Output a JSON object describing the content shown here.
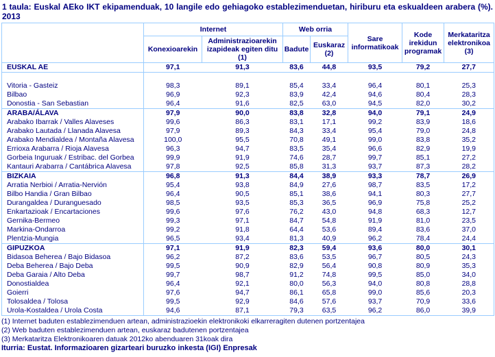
{
  "title": "1 taula: Euskal AEko IKT ekipamenduak, 10 langile edo gehiagoko establezimenduetan, hiriburu eta eskualdeen arabera (%). 2013",
  "colors": {
    "text_navy": "#000080",
    "border_light_blue": "#99CCFF",
    "background": "#FFFFFF"
  },
  "table": {
    "header": {
      "corner": "",
      "group_internet": "Internet",
      "group_web": "Web orria",
      "col_konexio": "Konexioarekin",
      "col_admin": "Administrazioarekin izapideak egiten ditu (1)",
      "col_badute": "Badute",
      "col_euskaraz": "Euskaraz (2)",
      "col_sare": "Sare informatikoak",
      "col_kode": "Kode irekidun programak",
      "col_merkataritza": "Merkataritza elektronikoa (3)"
    },
    "rows": [
      {
        "label": "EUSKAL AE",
        "type": "total",
        "values": [
          "97,1",
          "91,3",
          "83,6",
          "44,8",
          "93,5",
          "79,2",
          "27,7"
        ]
      },
      {
        "label": "",
        "type": "blank",
        "values": []
      },
      {
        "label": "Vitoria - Gasteiz",
        "type": "city",
        "values": [
          "98,3",
          "89,1",
          "85,4",
          "33,4",
          "96,4",
          "80,1",
          "25,3"
        ]
      },
      {
        "label": "Bilbao",
        "type": "city",
        "values": [
          "96,9",
          "92,3",
          "83,9",
          "42,4",
          "94,6",
          "80,4",
          "28,3"
        ]
      },
      {
        "label": "Donostia - San Sebastian",
        "type": "city",
        "values": [
          "96,4",
          "91,6",
          "82,5",
          "63,0",
          "94,5",
          "82,0",
          "30,2"
        ]
      },
      {
        "label": "ARABA/ÁLAVA",
        "type": "section",
        "values": [
          "97,9",
          "90,0",
          "83,8",
          "32,8",
          "94,0",
          "79,1",
          "24,9"
        ]
      },
      {
        "label": "Arabako Ibarrak / Valles Alaveses",
        "type": "sub",
        "values": [
          "99,6",
          "86,3",
          "83,1",
          "17,1",
          "99,2",
          "83,9",
          "18,6"
        ]
      },
      {
        "label": "Arabako Lautada / Llanada Alavesa",
        "type": "sub",
        "values": [
          "97,9",
          "89,3",
          "84,3",
          "33,4",
          "95,4",
          "79,0",
          "24,8"
        ]
      },
      {
        "label": "Arabako Mendialdea / Montaña Alavesa",
        "type": "sub",
        "values": [
          "100,0",
          "95,5",
          "70,8",
          "49,1",
          "99,0",
          "83,8",
          "35,2"
        ]
      },
      {
        "label": "Errioxa Arabarra / Rioja Alavesa",
        "type": "sub",
        "values": [
          "96,3",
          "94,7",
          "83,5",
          "35,4",
          "96,6",
          "82,9",
          "19,9"
        ]
      },
      {
        "label": "Gorbeia Inguruak / Estribac. del Gorbea",
        "type": "sub",
        "values": [
          "99,9",
          "91,9",
          "74,6",
          "28,7",
          "99,7",
          "85,1",
          "27,2"
        ]
      },
      {
        "label": "Kantauri Arabarra / Cantábrica Alavesa",
        "type": "sub",
        "values": [
          "97,8",
          "92,5",
          "85,8",
          "31,3",
          "93,7",
          "87,3",
          "28,2"
        ]
      },
      {
        "label": "BIZKAIA",
        "type": "section",
        "values": [
          "96,8",
          "91,3",
          "84,4",
          "38,9",
          "93,3",
          "78,7",
          "26,9"
        ]
      },
      {
        "label": "Arratia Nerbioi / Arratia-Nervión",
        "type": "sub",
        "values": [
          "95,4",
          "93,8",
          "84,9",
          "27,6",
          "98,7",
          "83,5",
          "17,2"
        ]
      },
      {
        "label": "Bilbo Handia / Gran Bilbao",
        "type": "sub",
        "values": [
          "96,4",
          "90,5",
          "85,1",
          "38,6",
          "94,1",
          "80,3",
          "27,7"
        ]
      },
      {
        "label": "Durangaldea / Duranguesado",
        "type": "sub",
        "values": [
          "98,5",
          "93,5",
          "85,3",
          "36,5",
          "96,9",
          "75,8",
          "25,2"
        ]
      },
      {
        "label": "Enkartazioak / Encartaciones",
        "type": "sub",
        "values": [
          "99,6",
          "97,6",
          "76,2",
          "43,0",
          "94,8",
          "68,3",
          "12,7"
        ]
      },
      {
        "label": "Gernika-Bermeo",
        "type": "sub",
        "values": [
          "99,3",
          "97,1",
          "84,7",
          "54,8",
          "91,9",
          "81,0",
          "23,5"
        ]
      },
      {
        "label": "Markina-Ondarroa",
        "type": "sub",
        "values": [
          "99,2",
          "91,8",
          "64,4",
          "53,6",
          "89,4",
          "83,6",
          "37,0"
        ]
      },
      {
        "label": "Plentzia-Mungia",
        "type": "sub",
        "values": [
          "96,5",
          "93,4",
          "81,3",
          "40,9",
          "96,2",
          "78,4",
          "24,4"
        ]
      },
      {
        "label": "GIPUZKOA",
        "type": "section",
        "values": [
          "97,1",
          "91,9",
          "82,3",
          "59,4",
          "93,6",
          "80,0",
          "30,1"
        ]
      },
      {
        "label": "Bidasoa Beherea / Bajo Bidasoa",
        "type": "sub",
        "values": [
          "96,2",
          "87,2",
          "83,6",
          "53,5",
          "96,7",
          "80,5",
          "24,3"
        ]
      },
      {
        "label": "Deba Beherea / Bajo Deba",
        "type": "sub",
        "values": [
          "99,5",
          "90,9",
          "82,9",
          "56,4",
          "90,8",
          "80,9",
          "35,3"
        ]
      },
      {
        "label": "Deba Garaia / Alto Deba",
        "type": "sub",
        "values": [
          "99,7",
          "98,7",
          "91,2",
          "74,8",
          "99,5",
          "85,0",
          "34,0"
        ]
      },
      {
        "label": "Donostialdea",
        "type": "sub",
        "values": [
          "96,4",
          "92,1",
          "80,0",
          "56,3",
          "94,0",
          "80,8",
          "28,8"
        ]
      },
      {
        "label": "Goierri",
        "type": "sub",
        "values": [
          "97,6",
          "94,7",
          "86,1",
          "65,8",
          "99,0",
          "85,6",
          "20,3"
        ]
      },
      {
        "label": "Tolosaldea / Tolosa",
        "type": "sub",
        "values": [
          "99,5",
          "92,9",
          "84,6",
          "57,6",
          "93,7",
          "70,9",
          "33,6"
        ]
      },
      {
        "label": "Urola-Kostaldea / Urola Costa",
        "type": "sub",
        "values": [
          "94,6",
          "87,1",
          "79,3",
          "63,5",
          "96,2",
          "86,0",
          "39,9"
        ]
      }
    ]
  },
  "footnotes": [
    "(1) Internet baduten establezimenduen artean, administrazioekin elektronikoki elkarreragiten dutenen portzentajea",
    "(2) Web baduten establezimenduen artean, euskaraz badutenen portzentajea",
    "(3) Merkataritza Elektronikoaren datuak 2012ko abenduaren 31koak dira"
  ],
  "source": "Iturria: Eustat. Informazioaren gizarteari buruzko inkesta (IGI) Enpresak"
}
